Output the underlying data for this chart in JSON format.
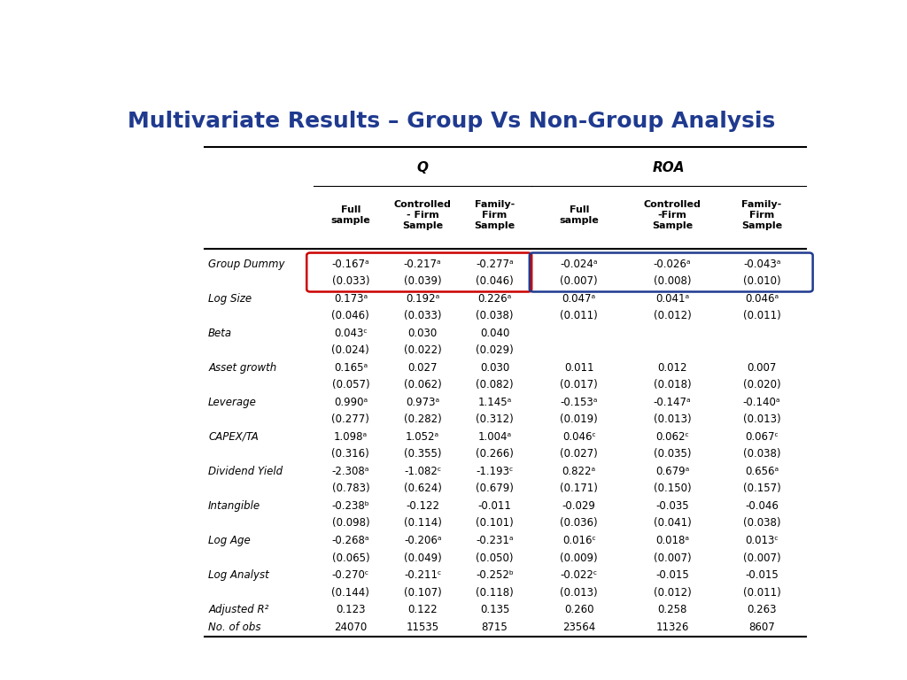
{
  "title": "Multivariate Results – Group Vs Non-Group Analysis",
  "title_color": "#1f3a8f",
  "title_fontsize": 18,
  "col_headers_level2": [
    "Full\nsample",
    "Controlled\n- Firm\nSample",
    "Family-\nFirm\nSample",
    "Full\nsample",
    "Controlled\n-Firm\nSample",
    "Family-\nFirm\nSample"
  ],
  "row_labels": [
    "Group Dummy",
    "",
    "Log Size",
    "",
    "Beta",
    "",
    "Asset growth",
    "",
    "Leverage",
    "",
    "CAPEX/TA",
    "",
    "Dividend Yield",
    "",
    "Intangible",
    "",
    "Log Age",
    "",
    "Log Analyst",
    "",
    "Adjusted R²",
    "No. of obs"
  ],
  "data": [
    [
      "-0.167ᵃ",
      "-0.217ᵃ",
      "-0.277ᵃ",
      "-0.024ᵃ",
      "-0.026ᵃ",
      "-0.043ᵃ"
    ],
    [
      "(0.033)",
      "(0.039)",
      "(0.046)",
      "(0.007)",
      "(0.008)",
      "(0.010)"
    ],
    [
      "0.173ᵃ",
      "0.192ᵃ",
      "0.226ᵃ",
      "0.047ᵃ",
      "0.041ᵃ",
      "0.046ᵃ"
    ],
    [
      "(0.046)",
      "(0.033)",
      "(0.038)",
      "(0.011)",
      "(0.012)",
      "(0.011)"
    ],
    [
      "0.043ᶜ",
      "0.030",
      "0.040",
      "",
      "",
      ""
    ],
    [
      "(0.024)",
      "(0.022)",
      "(0.029)",
      "",
      "",
      ""
    ],
    [
      "0.165ᵃ",
      "0.027",
      "0.030",
      "0.011",
      "0.012",
      "0.007"
    ],
    [
      "(0.057)",
      "(0.062)",
      "(0.082)",
      "(0.017)",
      "(0.018)",
      "(0.020)"
    ],
    [
      "0.990ᵃ",
      "0.973ᵃ",
      "1.145ᵃ",
      "-0.153ᵃ",
      "-0.147ᵃ",
      "-0.140ᵃ"
    ],
    [
      "(0.277)",
      "(0.282)",
      "(0.312)",
      "(0.019)",
      "(0.013)",
      "(0.013)"
    ],
    [
      "1.098ᵃ",
      "1.052ᵃ",
      "1.004ᵃ",
      "0.046ᶜ",
      "0.062ᶜ",
      "0.067ᶜ"
    ],
    [
      "(0.316)",
      "(0.355)",
      "(0.266)",
      "(0.027)",
      "(0.035)",
      "(0.038)"
    ],
    [
      "-2.308ᵃ",
      "-1.082ᶜ",
      "-1.193ᶜ",
      "0.822ᵃ",
      "0.679ᵃ",
      "0.656ᵃ"
    ],
    [
      "(0.783)",
      "(0.624)",
      "(0.679)",
      "(0.171)",
      "(0.150)",
      "(0.157)"
    ],
    [
      "-0.238ᵇ",
      "-0.122",
      "-0.011",
      "-0.029",
      "-0.035",
      "-0.046"
    ],
    [
      "(0.098)",
      "(0.114)",
      "(0.101)",
      "(0.036)",
      "(0.041)",
      "(0.038)"
    ],
    [
      "-0.268ᵃ",
      "-0.206ᵃ",
      "-0.231ᵃ",
      "0.016ᶜ",
      "0.018ᵃ",
      "0.013ᶜ"
    ],
    [
      "(0.065)",
      "(0.049)",
      "(0.050)",
      "(0.009)",
      "(0.007)",
      "(0.007)"
    ],
    [
      "-0.270ᶜ",
      "-0.211ᶜ",
      "-0.252ᵇ",
      "-0.022ᶜ",
      "-0.015",
      "-0.015"
    ],
    [
      "(0.144)",
      "(0.107)",
      "(0.118)",
      "(0.013)",
      "(0.012)",
      "(0.011)"
    ],
    [
      "0.123",
      "0.122",
      "0.135",
      "0.260",
      "0.258",
      "0.263"
    ],
    [
      "24070",
      "11535",
      "8715",
      "23564",
      "11326",
      "8607"
    ]
  ]
}
